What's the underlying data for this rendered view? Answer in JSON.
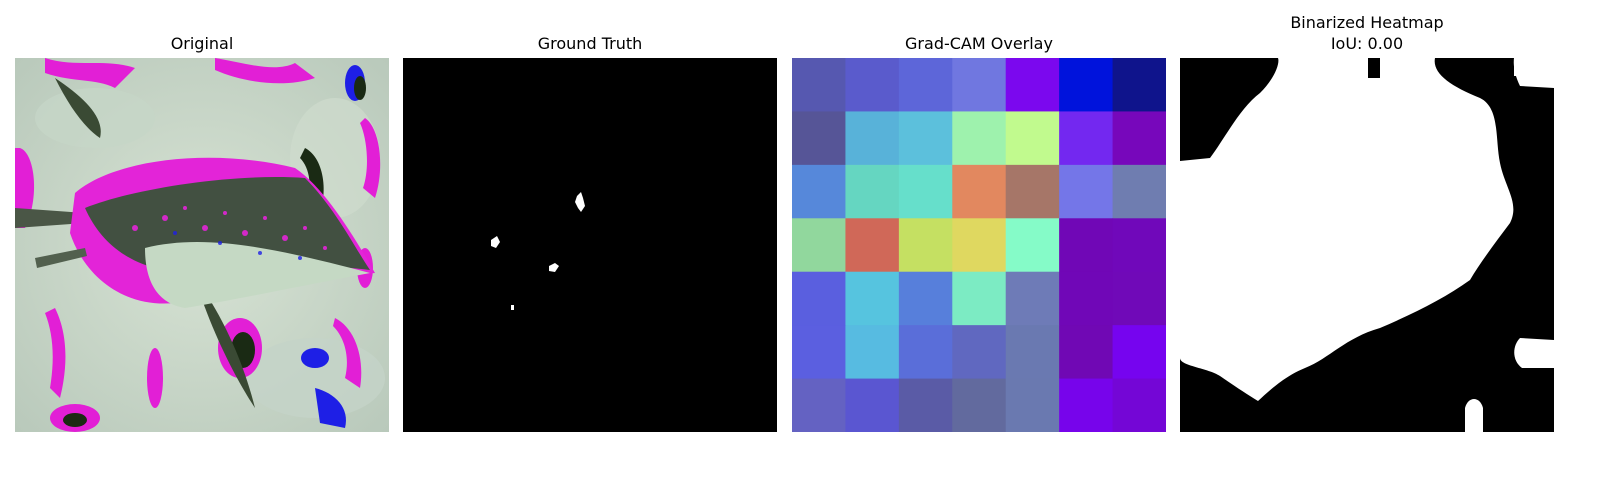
{
  "panels": [
    {
      "title": "Original",
      "subtitle": ""
    },
    {
      "title": "Ground Truth",
      "subtitle": ""
    },
    {
      "title": "Grad-CAM Overlay",
      "subtitle": ""
    },
    {
      "title": "Binarized Heatmap",
      "subtitle": "IoU: 0.00"
    }
  ],
  "gradcam": {
    "grid_size": 7,
    "cells": [
      [
        "#5658b0",
        "#5a5bcc",
        "#5d66d9",
        "#7077e0",
        "#7b08ee",
        "#0013dc",
        "#0f148c"
      ],
      [
        "#565597",
        "#58b2d9",
        "#5cc0dc",
        "#9ef2ad",
        "#c1fa8e",
        "#7328f0",
        "#7707bb"
      ],
      [
        "#5688da",
        "#65d6c1",
        "#66dfcb",
        "#e2885f",
        "#a67668",
        "#7476e8",
        "#6f7db0"
      ],
      [
        "#91d79d",
        "#d06858",
        "#c5e062",
        "#dfd860",
        "#85fbc8",
        "#7007b6",
        "#7008ba"
      ],
      [
        "#5a5fdf",
        "#56c4df",
        "#577fdb",
        "#7cebc3",
        "#6e7bb7",
        "#7007b7",
        "#7009b8"
      ],
      [
        "#5b5fe0",
        "#57bbe1",
        "#5a6ed9",
        "#6068c0",
        "#6a79b1",
        "#7008b4",
        "#7604ef"
      ],
      [
        "#6462c2",
        "#5a56d1",
        "#5a5ba6",
        "#626a9e",
        "#6a79b0",
        "#7704eb",
        "#7406d6"
      ]
    ]
  }
}
